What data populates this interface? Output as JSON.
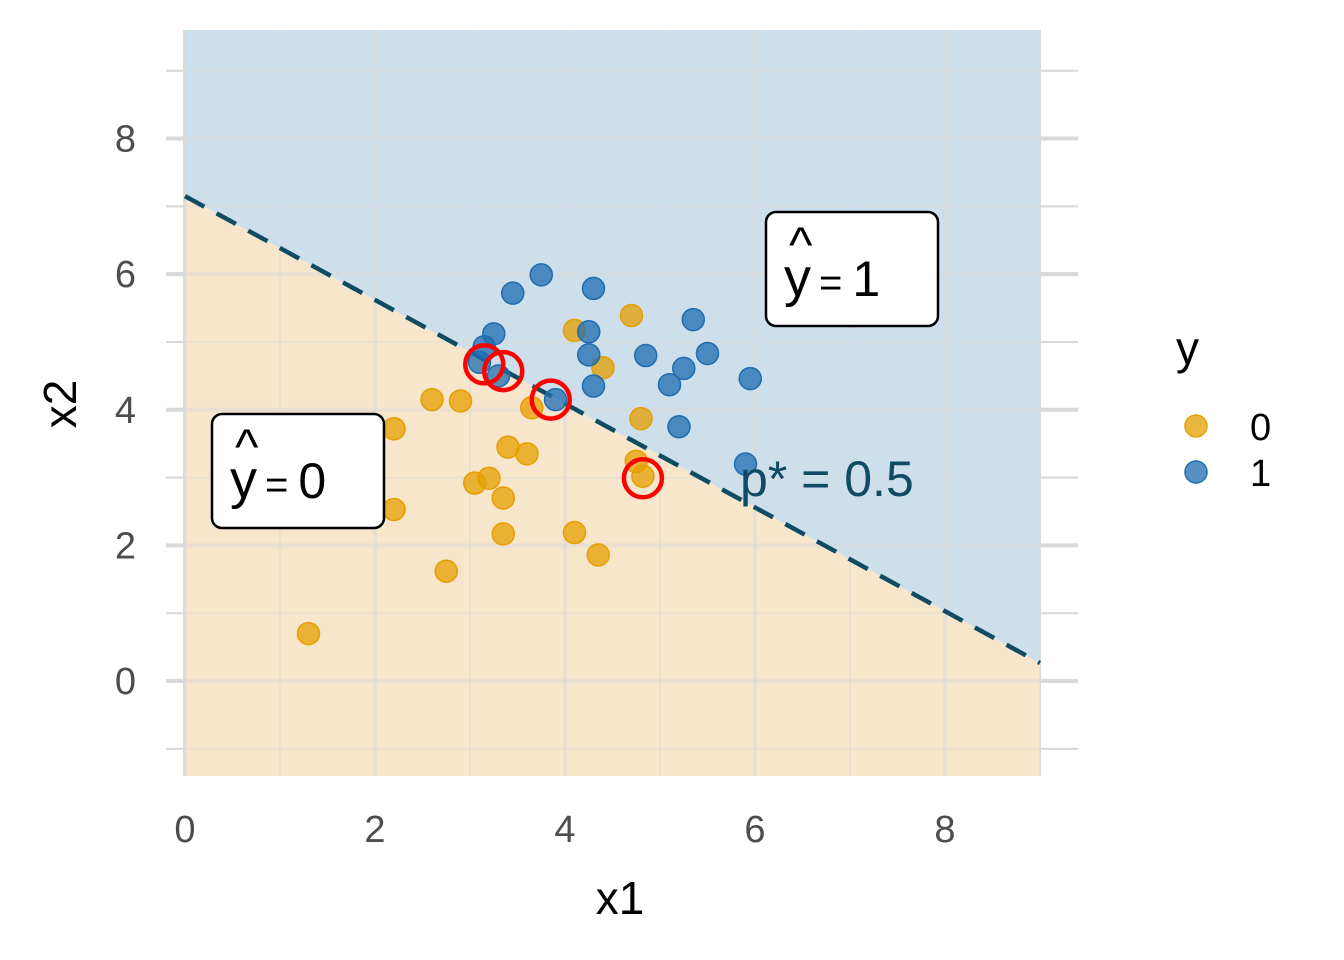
{
  "chart_data": {
    "type": "scatter",
    "xlabel": "x1",
    "ylabel": "x2",
    "xlim": [
      -0.2,
      9.4
    ],
    "ylim": [
      -1.4,
      9.6
    ],
    "region_xlim": [
      0,
      9
    ],
    "x_ticks": [
      0,
      2,
      4,
      6,
      8
    ],
    "y_ticks": [
      0,
      2,
      4,
      6,
      8
    ],
    "x_tick_labels": [
      "0",
      "2",
      "4",
      "6",
      "8"
    ],
    "y_tick_labels": [
      "0",
      "2",
      "4",
      "6",
      "8"
    ],
    "grid": true,
    "legend": {
      "title": "y",
      "placement": "right",
      "entries": [
        {
          "label": "0",
          "color": "#E69F00"
        },
        {
          "label": "1",
          "color": "#1F6CB0"
        }
      ]
    },
    "decision_boundary": {
      "intercept": 7.15,
      "slope": -0.765,
      "label_prefix": "p* = ",
      "threshold": "0.5",
      "color": "#0F4C63"
    },
    "regions": [
      {
        "hat_label": "0",
        "color": "#F7E6CC",
        "position": "lower-left"
      },
      {
        "hat_label": "1",
        "color": "#CCDFEB",
        "position": "upper-right"
      }
    ],
    "series": [
      {
        "name": "0",
        "color": "#E69F00",
        "points": [
          [
            1.3,
            0.7
          ],
          [
            2.2,
            2.53
          ],
          [
            2.2,
            3.72
          ],
          [
            2.6,
            4.15
          ],
          [
            2.9,
            4.13
          ],
          [
            2.75,
            1.62
          ],
          [
            3.05,
            2.92
          ],
          [
            3.2,
            2.99
          ],
          [
            3.35,
            2.7
          ],
          [
            3.35,
            2.17
          ],
          [
            3.4,
            3.45
          ],
          [
            3.6,
            3.35
          ],
          [
            3.65,
            4.03
          ],
          [
            4.1,
            2.19
          ],
          [
            4.35,
            1.86
          ],
          [
            4.7,
            5.39
          ],
          [
            4.8,
            3.87
          ],
          [
            4.75,
            3.24
          ],
          [
            4.1,
            5.17
          ],
          [
            4.4,
            4.62
          ],
          [
            4.82,
            3.02
          ]
        ]
      },
      {
        "name": "1",
        "color": "#1F6CB0",
        "points": [
          [
            3.15,
            4.93
          ],
          [
            3.25,
            5.12
          ],
          [
            3.45,
            5.72
          ],
          [
            3.75,
            5.99
          ],
          [
            4.3,
            5.79
          ],
          [
            4.25,
            5.15
          ],
          [
            4.25,
            4.81
          ],
          [
            4.3,
            4.35
          ],
          [
            4.85,
            4.8
          ],
          [
            5.1,
            4.37
          ],
          [
            5.25,
            4.61
          ],
          [
            5.35,
            5.33
          ],
          [
            5.5,
            4.83
          ],
          [
            5.2,
            3.75
          ],
          [
            5.95,
            4.46
          ],
          [
            5.9,
            3.2
          ],
          [
            3.9,
            4.15
          ],
          [
            3.1,
            4.7
          ],
          [
            3.3,
            4.5
          ]
        ]
      }
    ],
    "highlighted": [
      [
        3.15,
        4.67
      ],
      [
        3.35,
        4.57
      ],
      [
        3.85,
        4.15
      ],
      [
        4.82,
        2.99
      ]
    ],
    "highlight_color": "#FF0000"
  }
}
